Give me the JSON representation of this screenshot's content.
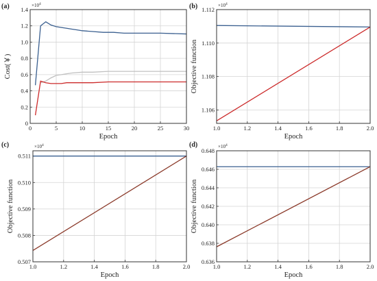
{
  "chart_data": [
    {
      "panel": "(a)",
      "type": "line",
      "xlabel": "Epoch",
      "ylabel": "Cost(￥)",
      "multiplier": "×10",
      "multiplier_exp": "4",
      "xlim": [
        0,
        30
      ],
      "ylim": [
        0,
        1.4
      ],
      "xticks": [
        "0",
        "5",
        "10",
        "15",
        "20",
        "25",
        "30"
      ],
      "yticks": [
        "0",
        "0.2",
        "0.4",
        "0.6",
        "0.8",
        "1.0",
        "1.2",
        "1.4"
      ],
      "series": [
        {
          "color": "#3a5f8f",
          "points": [
            [
              1,
              0.47
            ],
            [
              2,
              1.2
            ],
            [
              3,
              1.25
            ],
            [
              4,
              1.21
            ],
            [
              5,
              1.19
            ],
            [
              6,
              1.18
            ],
            [
              7,
              1.17
            ],
            [
              8,
              1.16
            ],
            [
              9,
              1.15
            ],
            [
              10,
              1.14
            ],
            [
              12,
              1.13
            ],
            [
              14,
              1.12
            ],
            [
              16,
              1.12
            ],
            [
              18,
              1.11
            ],
            [
              20,
              1.11
            ],
            [
              25,
              1.11
            ],
            [
              30,
              1.1
            ]
          ]
        },
        {
          "color": "#c0c0c0",
          "points": [
            [
              2,
              0.5
            ],
            [
              3,
              0.52
            ],
            [
              4,
              0.56
            ],
            [
              5,
              0.59
            ],
            [
              6,
              0.6
            ],
            [
              7,
              0.61
            ],
            [
              8,
              0.62
            ],
            [
              10,
              0.63
            ],
            [
              12,
              0.63
            ],
            [
              15,
              0.64
            ],
            [
              20,
              0.64
            ],
            [
              25,
              0.64
            ],
            [
              30,
              0.64
            ]
          ]
        },
        {
          "color": "#cc2a2a",
          "points": [
            [
              1,
              0.1
            ],
            [
              2,
              0.52
            ],
            [
              3,
              0.5
            ],
            [
              4,
              0.49
            ],
            [
              5,
              0.49
            ],
            [
              6,
              0.49
            ],
            [
              7,
              0.5
            ],
            [
              8,
              0.5
            ],
            [
              10,
              0.5
            ],
            [
              12,
              0.5
            ],
            [
              15,
              0.51
            ],
            [
              18,
              0.51
            ],
            [
              20,
              0.51
            ],
            [
              25,
              0.51
            ],
            [
              30,
              0.51
            ]
          ]
        }
      ]
    },
    {
      "panel": "(b)",
      "type": "line",
      "xlabel": "Epoch",
      "ylabel": "Objective function",
      "multiplier": "×10",
      "multiplier_exp": "4",
      "xlim": [
        1.0,
        2.0
      ],
      "ylim": [
        1.1052,
        1.112
      ],
      "xticks": [
        "1.0",
        "1.2",
        "1.4",
        "1.6",
        "1.8",
        "2.0"
      ],
      "yticks": [
        "1.106",
        "1.108",
        "1.110",
        "1.112"
      ],
      "series": [
        {
          "color": "#3a5f8f",
          "points": [
            [
              1.0,
              1.11105
            ],
            [
              2.0,
              1.11096
            ]
          ]
        },
        {
          "color": "#cc2a2a",
          "points": [
            [
              1.0,
              1.10535
            ],
            [
              2.0,
              1.11096
            ]
          ]
        }
      ]
    },
    {
      "panel": "(c)",
      "type": "line",
      "xlabel": "Epoch",
      "ylabel": "Objective function",
      "multiplier": "×10",
      "multiplier_exp": "4",
      "xlim": [
        1.0,
        2.0
      ],
      "ylim": [
        0.507,
        0.5112
      ],
      "xticks": [
        "1.0",
        "1.2",
        "1.4",
        "1.6",
        "1.8",
        "2.0"
      ],
      "yticks": [
        "0.507",
        "0.508",
        "0.509",
        "0.510",
        "0.511"
      ],
      "series": [
        {
          "color": "#3a5f8f",
          "points": [
            [
              1.0,
              0.511
            ],
            [
              2.0,
              0.511
            ]
          ]
        },
        {
          "color": "#8b3a2a",
          "points": [
            [
              1.0,
              0.50743
            ],
            [
              2.0,
              0.511
            ]
          ]
        }
      ]
    },
    {
      "panel": "(d)",
      "type": "line",
      "xlabel": "Epoch",
      "ylabel": "Objective function",
      "multiplier": "×10",
      "multiplier_exp": "4",
      "xlim": [
        1.0,
        2.0
      ],
      "ylim": [
        0.636,
        0.648
      ],
      "xticks": [
        "1.0",
        "1.2",
        "1.4",
        "1.6",
        "1.8",
        "2.0"
      ],
      "yticks": [
        "0.636",
        "0.638",
        "0.640",
        "0.642",
        "0.644",
        "0.646",
        "0.648"
      ],
      "series": [
        {
          "color": "#3a5f8f",
          "points": [
            [
              1.0,
              0.64628
            ],
            [
              2.0,
              0.64628
            ]
          ]
        },
        {
          "color": "#8b3a2a",
          "points": [
            [
              1.0,
              0.63762
            ],
            [
              2.0,
              0.64628
            ]
          ]
        }
      ]
    }
  ]
}
